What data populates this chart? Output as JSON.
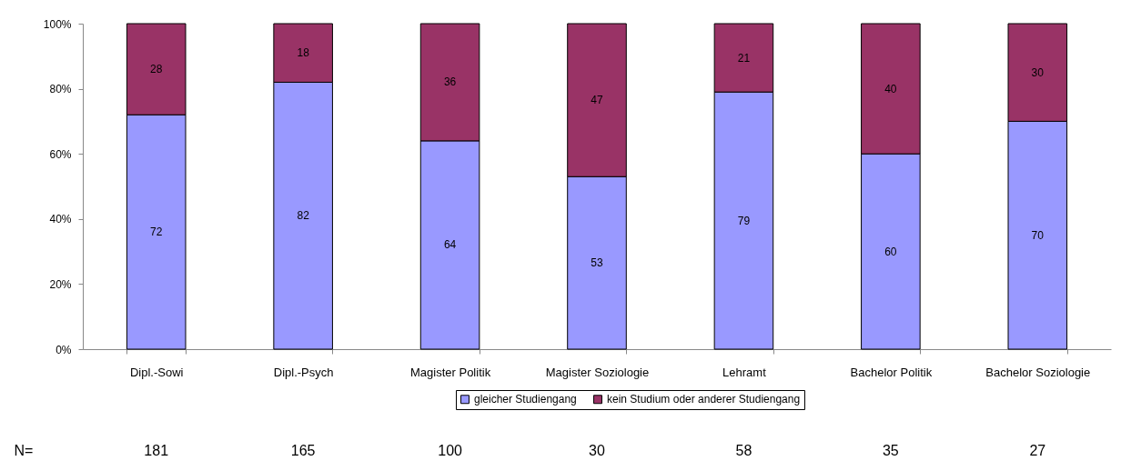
{
  "chart_data": {
    "type": "bar",
    "stacked": true,
    "categories": [
      "Dipl.-Sowi",
      "Dipl.-Psych",
      "Magister Politik",
      "Magister Soziologie",
      "Lehramt",
      "Bachelor Politik",
      "Bachelor Soziologie"
    ],
    "series": [
      {
        "name": "gleicher Studiengang",
        "color": "#9999ff",
        "values": [
          72,
          82,
          64,
          53,
          79,
          60,
          70
        ]
      },
      {
        "name": "kein Studium oder anderer Studiengang",
        "color": "#993366",
        "values": [
          28,
          18,
          36,
          47,
          21,
          40,
          30
        ]
      }
    ],
    "ylim": [
      0,
      100
    ],
    "yticks": [
      {
        "value": 0,
        "label": "0%"
      },
      {
        "value": 20,
        "label": "20%"
      },
      {
        "value": 40,
        "label": "40%"
      },
      {
        "value": 60,
        "label": "60%"
      },
      {
        "value": 80,
        "label": "80%"
      },
      {
        "value": 100,
        "label": "100%"
      }
    ],
    "data_labels": true,
    "legend": "bottom",
    "grid": false,
    "annotations": [
      "N=",
      "181",
      "165",
      "100",
      "30",
      "58",
      "35",
      "27"
    ]
  }
}
